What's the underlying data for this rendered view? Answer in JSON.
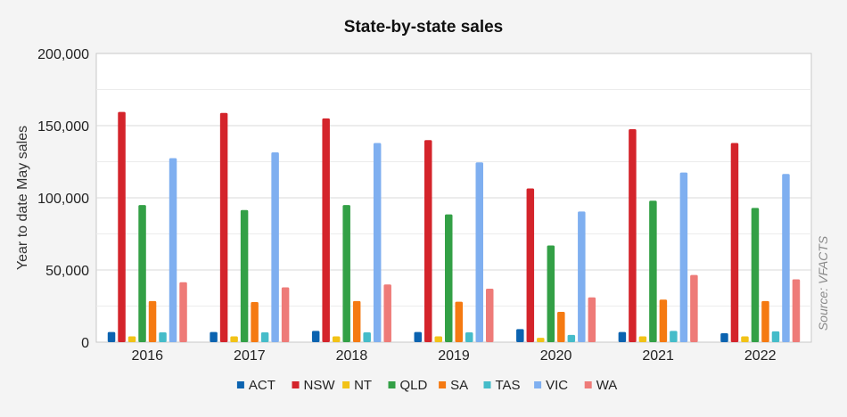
{
  "chart_data": {
    "type": "bar",
    "title": "State-by-state sales",
    "xlabel": "",
    "ylabel": "Year to date May sales",
    "ylim": [
      0,
      200000
    ],
    "yticks": [
      0,
      50000,
      100000,
      150000,
      200000
    ],
    "ytick_labels": [
      "0",
      "50,000",
      "100,000",
      "150,000",
      "200,000"
    ],
    "grid": true,
    "legend_position": "bottom",
    "source_note": "Source: VFACTS",
    "categories": [
      "2016",
      "2017",
      "2018",
      "2019",
      "2020",
      "2021",
      "2022"
    ],
    "series": [
      {
        "name": "ACT",
        "color": "#0b63b0",
        "values": [
          7000,
          7000,
          7800,
          7000,
          9000,
          7000,
          6200
        ]
      },
      {
        "name": "NSW",
        "color": "#d4242b",
        "values": [
          159500,
          158800,
          155000,
          140000,
          106500,
          147500,
          138000
        ]
      },
      {
        "name": "NT",
        "color": "#f2c216",
        "values": [
          4000,
          4000,
          4000,
          4000,
          3000,
          4000,
          4000
        ]
      },
      {
        "name": "QLD",
        "color": "#33a046",
        "values": [
          95000,
          91500,
          95000,
          88500,
          67000,
          98000,
          93000
        ]
      },
      {
        "name": "SA",
        "color": "#f57a12",
        "values": [
          28500,
          27800,
          28500,
          28000,
          21000,
          29500,
          28500
        ]
      },
      {
        "name": "TAS",
        "color": "#45bcc9",
        "values": [
          6800,
          6800,
          6800,
          6800,
          5000,
          7800,
          7500
        ]
      },
      {
        "name": "VIC",
        "color": "#7faff0",
        "values": [
          127500,
          131500,
          138000,
          124500,
          90500,
          117500,
          116500
        ]
      },
      {
        "name": "WA",
        "color": "#ee7b78",
        "values": [
          41500,
          38000,
          40000,
          37000,
          31000,
          46500,
          43500
        ]
      }
    ]
  }
}
